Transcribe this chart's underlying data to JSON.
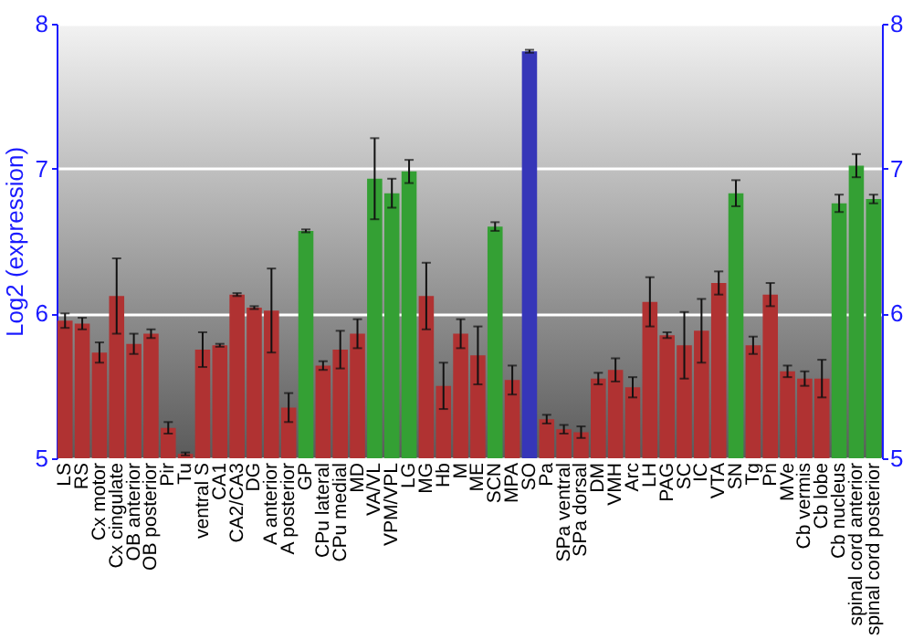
{
  "chart_data": {
    "type": "bar",
    "ylabel": "Log2 (expression)",
    "categories": [
      "LS",
      "RS",
      "Cx motor",
      "Cx cingulate",
      "OB anterior",
      "OB posterior",
      "Pir",
      "Tu",
      "ventral S",
      "CA1",
      "CA2/CA3",
      "DG",
      "A anterior",
      "A posterior",
      "GP",
      "CPu lateral",
      "CPu medial",
      "MD",
      "VA/VL",
      "VPM/VPL",
      "LG",
      "MG",
      "Hb",
      "M",
      "ME",
      "SCN",
      "MPA",
      "SO",
      "Pa",
      "SPa ventral",
      "SPa dorsal",
      "DM",
      "VMH",
      "Arc",
      "LH",
      "PAG",
      "SC",
      "IC",
      "VTA",
      "SN",
      "Tg",
      "Pn",
      "MVe",
      "Cb vermis",
      "Cb lobe",
      "Cb nucleus",
      "spinal cord anterior",
      "spinal cord posterior"
    ],
    "values": [
      5.95,
      5.93,
      5.73,
      6.12,
      5.79,
      5.86,
      5.21,
      5.03,
      5.75,
      5.78,
      6.13,
      6.04,
      6.02,
      5.35,
      6.57,
      5.64,
      5.75,
      5.86,
      6.93,
      6.83,
      6.98,
      6.12,
      5.5,
      5.86,
      5.71,
      6.6,
      5.54,
      7.81,
      5.27,
      5.2,
      5.18,
      5.55,
      5.61,
      5.49,
      6.08,
      5.85,
      5.78,
      5.88,
      6.21,
      6.83,
      5.78,
      6.13,
      5.6,
      5.55,
      5.55,
      6.76,
      7.02,
      6.79
    ],
    "errors": [
      0.05,
      0.04,
      0.07,
      0.26,
      0.07,
      0.03,
      0.04,
      0.01,
      0.12,
      0.01,
      0.01,
      0.01,
      0.29,
      0.1,
      0.01,
      0.03,
      0.13,
      0.1,
      0.28,
      0.1,
      0.08,
      0.23,
      0.16,
      0.1,
      0.2,
      0.03,
      0.1,
      0.01,
      0.03,
      0.03,
      0.04,
      0.04,
      0.08,
      0.07,
      0.17,
      0.02,
      0.23,
      0.22,
      0.08,
      0.09,
      0.06,
      0.08,
      0.04,
      0.05,
      0.13,
      0.06,
      0.08,
      0.03
    ],
    "colors": [
      "#b03232",
      "#b03232",
      "#b03232",
      "#b03232",
      "#b03232",
      "#b03232",
      "#b03232",
      "#b03232",
      "#b03232",
      "#b03232",
      "#b03232",
      "#b03232",
      "#b03232",
      "#b03232",
      "#34a034",
      "#b03232",
      "#b03232",
      "#b03232",
      "#34a034",
      "#34a034",
      "#34a034",
      "#b03232",
      "#b03232",
      "#b03232",
      "#b03232",
      "#34a034",
      "#b03232",
      "#3636b8",
      "#b03232",
      "#b03232",
      "#b03232",
      "#b03232",
      "#b03232",
      "#b03232",
      "#b03232",
      "#b03232",
      "#b03232",
      "#b03232",
      "#b03232",
      "#34a034",
      "#b03232",
      "#b03232",
      "#b03232",
      "#b03232",
      "#b03232",
      "#34a034",
      "#34a034",
      "#34a034"
    ],
    "ylim": [
      5,
      8
    ],
    "yticks": [
      5,
      6,
      7,
      8
    ],
    "y2lim": [
      5,
      8
    ],
    "y2ticks": [
      5,
      6,
      7,
      8
    ],
    "grid": "y"
  }
}
